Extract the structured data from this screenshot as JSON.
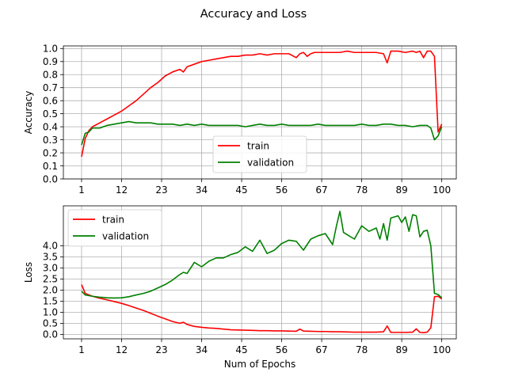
{
  "figure_title": "Accuracy and Loss",
  "colors": {
    "train": "#ff0000",
    "validation": "#008000",
    "grid": "#b0b0b0"
  },
  "chart_data": [
    {
      "type": "line",
      "ylabel": "Accuracy",
      "xlabel": "",
      "xlim": [
        -4,
        104
      ],
      "ylim": [
        0.0,
        1.02
      ],
      "xticks": [
        1,
        12,
        23,
        34,
        45,
        56,
        67,
        78,
        89,
        100
      ],
      "yticks": [
        0.0,
        0.1,
        0.2,
        0.3,
        0.4,
        0.5,
        0.6,
        0.7,
        0.8,
        0.9,
        1.0
      ],
      "ytick_labels": [
        "0.0",
        "0.1",
        "0.2",
        "0.3",
        "0.4",
        "0.5",
        "0.6",
        "0.7",
        "0.8",
        "0.9",
        "1.0"
      ],
      "grid": true,
      "legend_position": "lower-center",
      "series": [
        {
          "name": "train",
          "color": "#ff0000",
          "x": [
            1,
            2,
            3,
            4,
            6,
            8,
            10,
            12,
            14,
            16,
            18,
            20,
            22,
            24,
            26,
            28,
            29,
            30,
            32,
            34,
            36,
            38,
            40,
            42,
            44,
            46,
            48,
            50,
            52,
            54,
            56,
            58,
            60,
            61,
            62,
            63,
            64,
            65,
            66,
            67,
            68,
            70,
            72,
            74,
            76,
            78,
            80,
            82,
            84,
            85,
            86,
            88,
            90,
            92,
            93,
            94,
            95,
            96,
            97,
            98,
            99,
            100
          ],
          "y": [
            0.17,
            0.31,
            0.37,
            0.4,
            0.43,
            0.46,
            0.49,
            0.52,
            0.56,
            0.6,
            0.65,
            0.7,
            0.74,
            0.79,
            0.82,
            0.84,
            0.82,
            0.86,
            0.88,
            0.9,
            0.91,
            0.92,
            0.93,
            0.94,
            0.94,
            0.95,
            0.95,
            0.96,
            0.95,
            0.96,
            0.96,
            0.96,
            0.93,
            0.96,
            0.97,
            0.94,
            0.96,
            0.97,
            0.97,
            0.97,
            0.97,
            0.97,
            0.97,
            0.98,
            0.97,
            0.97,
            0.97,
            0.97,
            0.96,
            0.89,
            0.98,
            0.98,
            0.97,
            0.98,
            0.97,
            0.98,
            0.93,
            0.98,
            0.98,
            0.94,
            0.36,
            0.42
          ]
        },
        {
          "name": "validation",
          "color": "#008000",
          "x": [
            1,
            2,
            3,
            4,
            6,
            8,
            10,
            12,
            14,
            16,
            18,
            20,
            22,
            24,
            26,
            28,
            30,
            32,
            34,
            36,
            38,
            40,
            42,
            44,
            46,
            48,
            50,
            52,
            54,
            56,
            58,
            60,
            62,
            64,
            66,
            68,
            70,
            72,
            74,
            76,
            78,
            80,
            82,
            84,
            86,
            88,
            90,
            92,
            94,
            96,
            97,
            98,
            99,
            100
          ],
          "y": [
            0.26,
            0.35,
            0.36,
            0.39,
            0.39,
            0.41,
            0.42,
            0.43,
            0.44,
            0.43,
            0.43,
            0.43,
            0.42,
            0.42,
            0.42,
            0.41,
            0.42,
            0.41,
            0.42,
            0.41,
            0.41,
            0.41,
            0.41,
            0.41,
            0.4,
            0.41,
            0.42,
            0.41,
            0.41,
            0.42,
            0.41,
            0.41,
            0.41,
            0.41,
            0.42,
            0.41,
            0.41,
            0.41,
            0.41,
            0.41,
            0.42,
            0.41,
            0.41,
            0.42,
            0.42,
            0.41,
            0.41,
            0.4,
            0.41,
            0.41,
            0.39,
            0.3,
            0.33,
            0.4
          ]
        }
      ]
    },
    {
      "type": "line",
      "ylabel": "Loss",
      "xlabel": "Num of Epochs",
      "xlim": [
        -4,
        104
      ],
      "ylim": [
        -0.2,
        5.8
      ],
      "xticks": [
        1,
        12,
        23,
        34,
        45,
        56,
        67,
        78,
        89,
        100
      ],
      "yticks": [
        0.0,
        0.5,
        1.0,
        1.5,
        2.0,
        2.5,
        3.0,
        3.5,
        4.0
      ],
      "ytick_labels": [
        "0.0",
        "0.5",
        "1.0",
        "1.5",
        "2.0",
        "2.5",
        "3.0",
        "3.5",
        "4.0"
      ],
      "grid": true,
      "legend_position": "upper-left",
      "series": [
        {
          "name": "train",
          "color": "#ff0000",
          "x": [
            1,
            2,
            4,
            6,
            8,
            10,
            12,
            14,
            16,
            18,
            20,
            22,
            24,
            26,
            28,
            29,
            30,
            32,
            34,
            36,
            38,
            40,
            42,
            44,
            46,
            48,
            50,
            52,
            54,
            56,
            58,
            60,
            61,
            62,
            64,
            66,
            68,
            70,
            72,
            74,
            76,
            78,
            80,
            82,
            84,
            85,
            86,
            88,
            90,
            92,
            93,
            94,
            95,
            96,
            97,
            98,
            99,
            100
          ],
          "y": [
            2.25,
            1.85,
            1.72,
            1.63,
            1.56,
            1.48,
            1.4,
            1.3,
            1.19,
            1.08,
            0.95,
            0.82,
            0.7,
            0.58,
            0.5,
            0.55,
            0.45,
            0.36,
            0.32,
            0.29,
            0.27,
            0.24,
            0.21,
            0.2,
            0.19,
            0.18,
            0.17,
            0.17,
            0.16,
            0.16,
            0.15,
            0.14,
            0.24,
            0.15,
            0.14,
            0.13,
            0.13,
            0.12,
            0.12,
            0.11,
            0.1,
            0.1,
            0.1,
            0.1,
            0.12,
            0.38,
            0.09,
            0.09,
            0.09,
            0.1,
            0.25,
            0.09,
            0.08,
            0.1,
            0.3,
            1.7,
            1.72,
            1.6
          ]
        },
        {
          "name": "validation",
          "color": "#008000",
          "x": [
            1,
            2,
            4,
            6,
            8,
            10,
            12,
            14,
            16,
            18,
            20,
            22,
            24,
            26,
            28,
            29,
            30,
            32,
            34,
            36,
            38,
            40,
            42,
            44,
            46,
            48,
            50,
            52,
            54,
            56,
            58,
            60,
            62,
            64,
            66,
            68,
            70,
            71,
            72,
            73,
            74,
            76,
            78,
            80,
            82,
            83,
            84,
            85,
            86,
            88,
            89,
            90,
            91,
            92,
            93,
            94,
            95,
            96,
            97,
            98,
            99,
            100
          ],
          "y": [
            1.95,
            1.78,
            1.72,
            1.68,
            1.65,
            1.64,
            1.65,
            1.7,
            1.78,
            1.85,
            1.95,
            2.1,
            2.25,
            2.45,
            2.7,
            2.8,
            2.75,
            3.25,
            3.05,
            3.3,
            3.45,
            3.45,
            3.6,
            3.7,
            3.95,
            3.75,
            4.25,
            3.65,
            3.8,
            4.1,
            4.25,
            4.2,
            3.8,
            4.3,
            4.45,
            4.55,
            4.05,
            4.85,
            5.55,
            4.6,
            4.5,
            4.3,
            4.9,
            4.65,
            4.8,
            4.3,
            5.0,
            4.25,
            5.25,
            5.35,
            5.05,
            5.3,
            4.65,
            5.4,
            5.35,
            4.4,
            4.65,
            4.7,
            4.0,
            1.85,
            1.8,
            1.65
          ]
        }
      ]
    }
  ]
}
